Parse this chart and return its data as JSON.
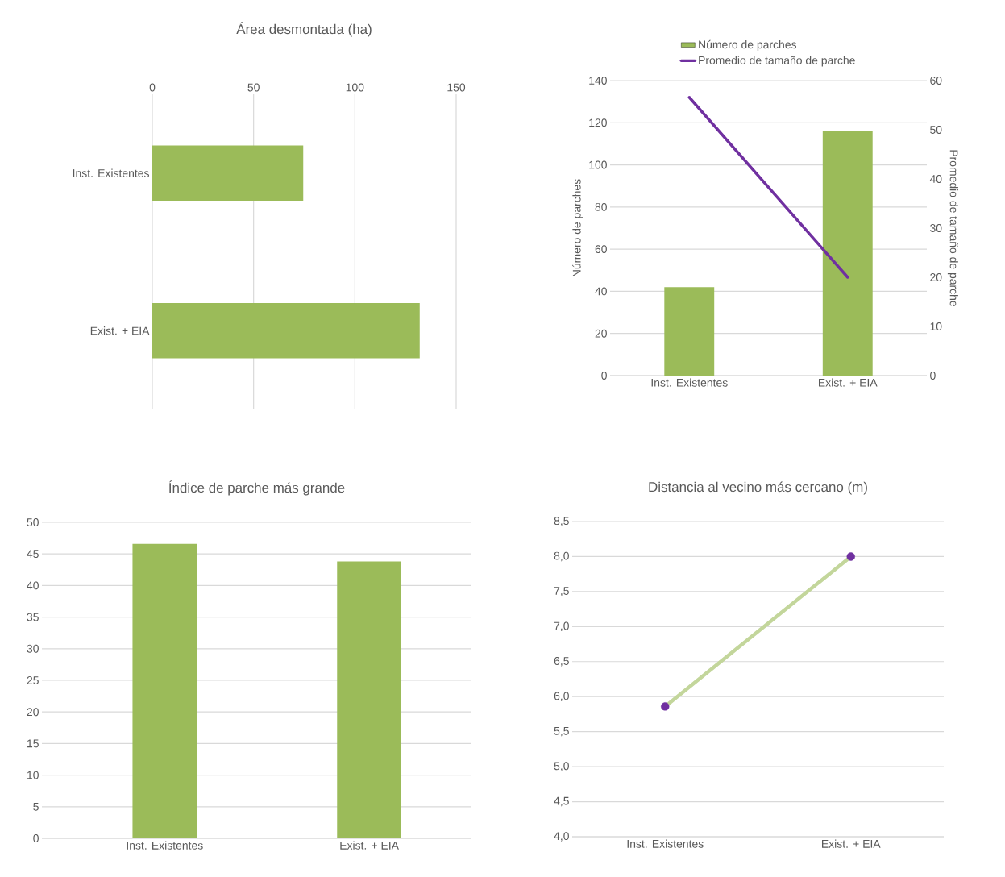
{
  "chart_data": [
    {
      "type": "bar",
      "orientation": "horizontal",
      "title": "Área desmontada (ha)",
      "categories": [
        "Inst. Existentes",
        "Exist. + EIA"
      ],
      "values": [
        74.5,
        132
      ],
      "color": "#9bbb59",
      "xlim": [
        0,
        150
      ],
      "xticks": [
        0,
        50,
        100,
        150
      ],
      "grid": "x"
    },
    {
      "type": "bar",
      "categories": [
        "Inst. Existentes",
        "Exist. + EIA"
      ],
      "ylabel": "Número de parches",
      "y2label": "Promedio de tamaño de parche",
      "series": [
        {
          "name": "Número de parches",
          "color": "#9bbb59",
          "values": [
            42,
            116
          ]
        },
        {
          "name": "Promedio de tamaño de parche",
          "type": "line",
          "axis": "y2",
          "color": "#7030a0",
          "values": [
            56.6,
            20
          ]
        }
      ],
      "ylim": [
        0,
        140
      ],
      "yticks": [
        0,
        20,
        40,
        60,
        80,
        100,
        120,
        140
      ],
      "y2lim": [
        0,
        60
      ],
      "y2ticks": [
        0,
        10,
        20,
        30,
        40,
        50,
        60
      ],
      "grid": "y",
      "legend": "top"
    },
    {
      "type": "bar",
      "title": "Índice de parche más grande",
      "categories": [
        "Inst. Existentes",
        "Exist. + EIA"
      ],
      "values": [
        46.6,
        43.8
      ],
      "color": "#9bbb59",
      "ylim": [
        0,
        50
      ],
      "yticks": [
        0,
        5,
        10,
        15,
        20,
        25,
        30,
        35,
        40,
        45,
        50
      ],
      "grid": "y"
    },
    {
      "type": "line",
      "title": "Distancia al vecino más cercano (m)",
      "categories": [
        "Inst. Existentes",
        "Exist. + EIA"
      ],
      "values": [
        5.86,
        8.0
      ],
      "color": "#c3d69b",
      "colors": [
        "#7030a0",
        "#7030a0"
      ],
      "marker": "circle",
      "ylim": [
        4.0,
        8.5
      ],
      "yticks": [
        {
          "value": 4.0,
          "label": "4,0"
        },
        {
          "value": 4.5,
          "label": "4,5"
        },
        {
          "value": 5.0,
          "label": "5,0"
        },
        {
          "value": 5.5,
          "label": "5,5"
        },
        {
          "value": 6.0,
          "label": "6,0"
        },
        {
          "value": 6.5,
          "label": "6,5"
        },
        {
          "value": 7.0,
          "label": "7,0"
        },
        {
          "value": 7.5,
          "label": "7,5"
        },
        {
          "value": 8.0,
          "label": "8,0"
        },
        {
          "value": 8.5,
          "label": "8,5"
        }
      ],
      "grid": "y"
    }
  ]
}
